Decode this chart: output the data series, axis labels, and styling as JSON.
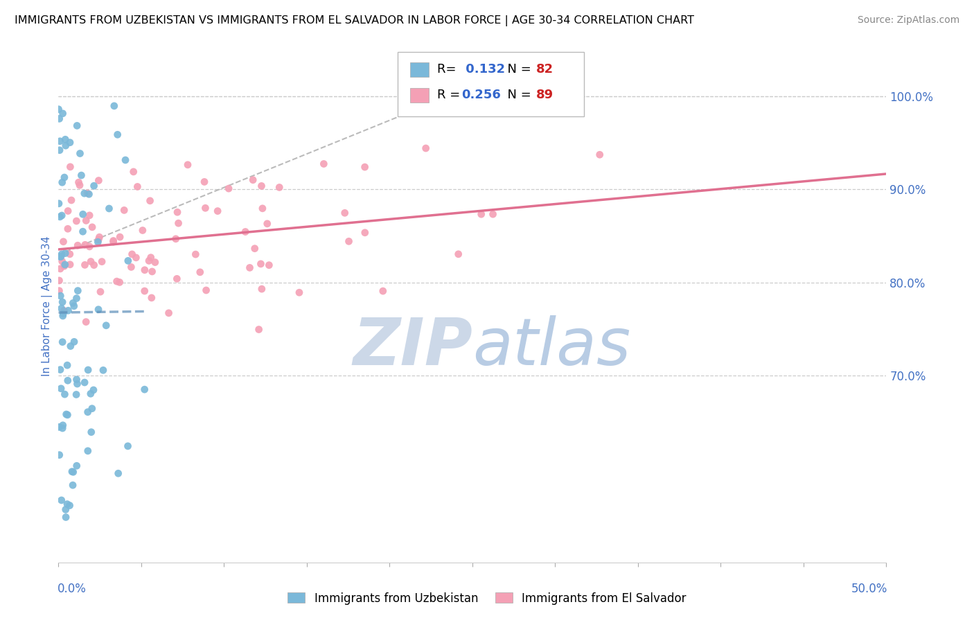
{
  "title": "IMMIGRANTS FROM UZBEKISTAN VS IMMIGRANTS FROM EL SALVADOR IN LABOR FORCE | AGE 30-34 CORRELATION CHART",
  "source": "Source: ZipAtlas.com",
  "ylabel": "In Labor Force | Age 30-34",
  "y_ticks": [
    0.7,
    0.8,
    0.9,
    1.0
  ],
  "y_tick_labels_right": [
    "70.0%",
    "80.0%",
    "90.0%",
    "100.0%"
  ],
  "xlim": [
    0.0,
    0.5
  ],
  "ylim": [
    0.5,
    1.05
  ],
  "R_uzbekistan": 0.132,
  "N_uzbekistan": 82,
  "R_el_salvador": 0.256,
  "N_el_salvador": 89,
  "color_uzbekistan": "#7ab8d9",
  "color_el_salvador": "#f4a0b5",
  "color_trend_uzbekistan": "#5b8db8",
  "color_trend_el_salvador": "#e07090",
  "watermark_color": "#ccd8e8",
  "background_color": "#ffffff",
  "grid_color": "#cccccc",
  "grid_linestyle": "--",
  "seed_uzbekistan": 42,
  "seed_el_salvador": 99
}
